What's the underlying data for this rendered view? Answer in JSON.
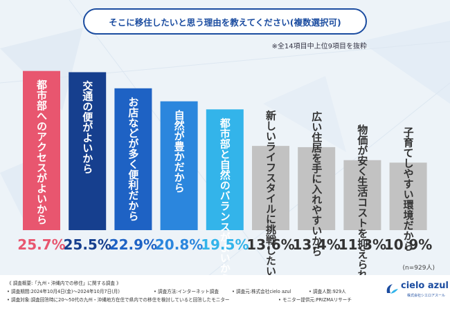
{
  "title": "そこに移住したいと思う理由を教えてください(複数選択可)",
  "note": "※全14項目中上位9項目を抜粋",
  "sample_note": "(n=929人)",
  "colors": {
    "pink": "#e8566f",
    "navy": "#163f8e",
    "blue": "#1e62c4",
    "sky": "#2b86dd",
    "cyan": "#33b4ea",
    "gray": "#c2c2c2"
  },
  "chart_data": {
    "type": "bar",
    "title": "そこに移住したいと思う理由を教えてください(複数選択可)",
    "categories": [
      "都市部へのアクセスがよいから",
      "交通の便がよいから",
      "お店などが多く便利だから",
      "自然が豊かだから",
      "都市部と自然のバランスがよいから",
      "新しいライフスタイルに挑戦したいから",
      "広い住居を手に入れやすいから",
      "物価が安く生活コストを抑えられるから",
      "子育てしやすい環境だから"
    ],
    "values": [
      25.7,
      25.5,
      22.9,
      20.8,
      19.5,
      13.6,
      13.4,
      11.3,
      10.9
    ],
    "value_labels": [
      "25.7%",
      "25.5%",
      "22.9%",
      "20.8%",
      "19.5%",
      "13.6%",
      "13.4%",
      "11.3%",
      "10.9%"
    ],
    "unit": "%",
    "ylim": [
      0,
      26
    ],
    "xlabel": "",
    "ylabel": "",
    "legend": "none"
  },
  "footer": {
    "line1": "《 調査概要:「九州・沖縄内での移住」に関する調査 》",
    "line2": "• 調査期間:2024年10月4日(金)〜2024年10月7日(月)",
    "line2b": "• 調査方法:インターネット調査",
    "line2c": "• 調査元:株式会社cielo azul",
    "line2d": "• 調査人数:929人",
    "line3": "• 調査対象:調査回答時に20〜50代の九州・沖縄地方在住で県内での移住を検討していると回答したモニター",
    "line3b": "• モニター提供元:PRIZMAリサーチ"
  },
  "logo": {
    "name": "cielo azul",
    "sub": "株式会社シエロアスール"
  }
}
